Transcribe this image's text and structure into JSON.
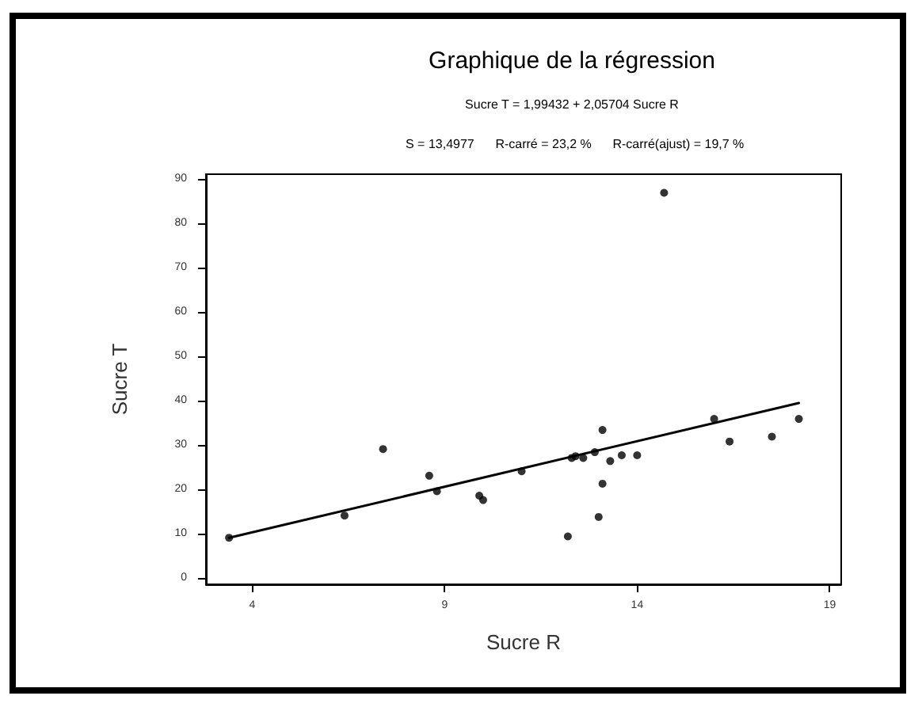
{
  "chart_data": {
    "type": "scatter",
    "title": "Graphique de la régression",
    "subtitle": "Sucre T = 1,99432 + 2,05704 Sucre R",
    "annotations": [
      "S = 13,4977      R-carré = 23,2 %      R-carré(ajust) = 19,7 %"
    ],
    "xlabel": "Sucre R",
    "ylabel": "Sucre T",
    "xlim": [
      2.8,
      19.3
    ],
    "xticks": [
      4,
      9,
      14,
      19
    ],
    "ylim": [
      -1.5,
      91
    ],
    "yticks": [
      0,
      10,
      20,
      30,
      40,
      50,
      60,
      70,
      80,
      90
    ],
    "grid": false,
    "marker": "circle",
    "series": [
      {
        "color": "#000000",
        "x": [
          3.4,
          6.4,
          7.4,
          8.6,
          8.8,
          9.9,
          10.0,
          11.0,
          12.2,
          12.3,
          12.4,
          12.6,
          12.9,
          13.0,
          13.1,
          13.1,
          13.3,
          13.6,
          14.0,
          14.7,
          16.0,
          16.4,
          17.5,
          18.2
        ],
        "values": [
          9,
          14,
          29,
          23,
          19.5,
          18.5,
          17.5,
          24,
          9.3,
          27,
          27.4,
          27,
          28.3,
          13.7,
          33.3,
          21.2,
          26.3,
          27.6,
          27.6,
          86.8,
          35.8,
          30.7,
          31.8,
          35.8
        ]
      },
      {
        "type": "line",
        "color": "#000000",
        "marker": "none",
        "line_style": "solid",
        "x": [
          3.4,
          18.2
        ],
        "values": [
          9.0,
          39.4
        ]
      }
    ]
  }
}
